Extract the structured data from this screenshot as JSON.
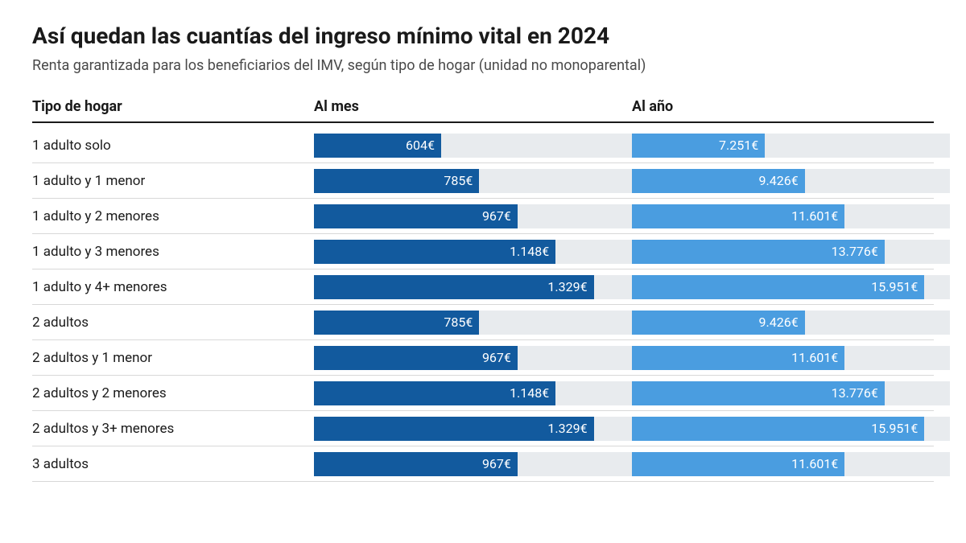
{
  "title": "Así quedan las cuantías del ingreso mínimo vital en 2024",
  "subtitle": "Renta garantizada para los beneficiarios del IMV, según tipo de hogar (unidad no monoparental)",
  "columns": {
    "label": "Tipo de hogar",
    "month": "Al mes",
    "year": "Al año"
  },
  "chart": {
    "month_color": "#125a9e",
    "year_color": "#4a9de0",
    "track_color": "#e8ebee",
    "month_max": 1329,
    "year_max": 15951,
    "month_bar_full_pct": 88,
    "year_bar_full_pct": 92,
    "currency_suffix": "€"
  },
  "rows": [
    {
      "label": "1 adulto solo",
      "month": 604,
      "month_label": "604€",
      "year": 7251,
      "year_label": "7.251€"
    },
    {
      "label": "1 adulto y 1 menor",
      "month": 785,
      "month_label": "785€",
      "year": 9426,
      "year_label": "9.426€"
    },
    {
      "label": "1 adulto y 2 menores",
      "month": 967,
      "month_label": "967€",
      "year": 11601,
      "year_label": "11.601€"
    },
    {
      "label": "1 adulto y 3 menores",
      "month": 1148,
      "month_label": "1.148€",
      "year": 13776,
      "year_label": "13.776€"
    },
    {
      "label": "1 adulto y 4+ menores",
      "month": 1329,
      "month_label": "1.329€",
      "year": 15951,
      "year_label": "15.951€"
    },
    {
      "label": "2 adultos",
      "month": 785,
      "month_label": "785€",
      "year": 9426,
      "year_label": "9.426€"
    },
    {
      "label": "2 adultos y 1 menor",
      "month": 967,
      "month_label": "967€",
      "year": 11601,
      "year_label": "11.601€"
    },
    {
      "label": "2 adultos y 2 menores",
      "month": 1148,
      "month_label": "1.148€",
      "year": 13776,
      "year_label": "13.776€"
    },
    {
      "label": "2 adultos y 3+ menores",
      "month": 1329,
      "month_label": "1.329€",
      "year": 15951,
      "year_label": "15.951€"
    },
    {
      "label": "3 adultos",
      "month": 967,
      "month_label": "967€",
      "year": 11601,
      "year_label": "11.601€"
    }
  ]
}
